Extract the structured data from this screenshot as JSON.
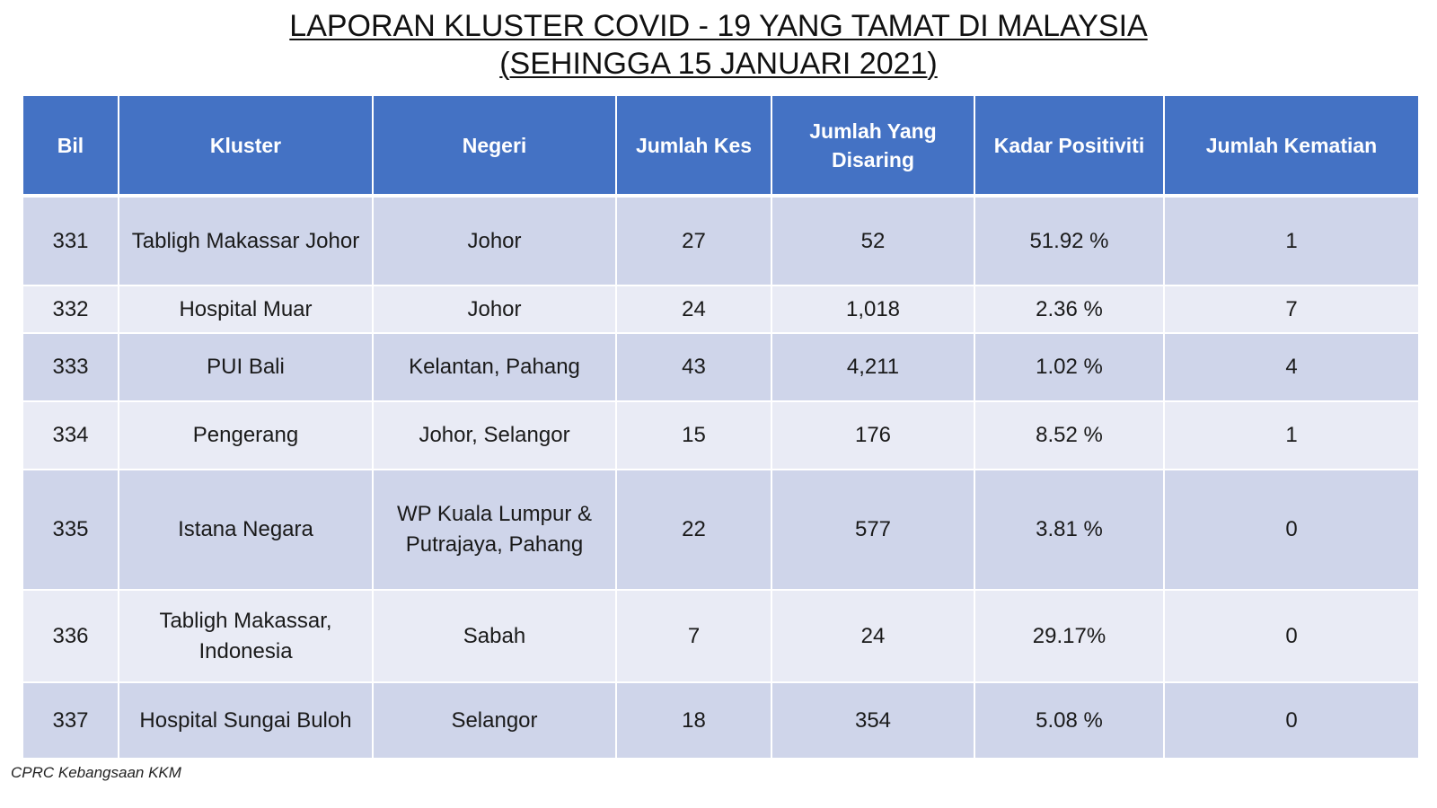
{
  "title": {
    "line1": "LAPORAN KLUSTER COVID - 19 YANG TAMAT DI MALAYSIA",
    "line2": "(SEHINGGA 15 JANUARI 2021)"
  },
  "table": {
    "headers": [
      "Bil",
      "Kluster",
      "Negeri",
      "Jumlah Kes",
      "Jumlah Yang Disaring",
      "Kadar Positiviti",
      "Jumlah Kematian"
    ],
    "rows": [
      {
        "bil": "331",
        "kluster": "Tabligh Makassar Johor",
        "negeri": "Johor",
        "kes": "27",
        "disaring": "52",
        "kadar": "51.92 %",
        "kematian": "1"
      },
      {
        "bil": "332",
        "kluster": "Hospital Muar",
        "negeri": "Johor",
        "kes": "24",
        "disaring": "1,018",
        "kadar": "2.36 %",
        "kematian": "7"
      },
      {
        "bil": "333",
        "kluster": "PUI Bali",
        "negeri": "Kelantan, Pahang",
        "kes": "43",
        "disaring": "4,211",
        "kadar": "1.02 %",
        "kematian": "4"
      },
      {
        "bil": "334",
        "kluster": "Pengerang",
        "negeri": "Johor, Selangor",
        "kes": "15",
        "disaring": "176",
        "kadar": "8.52 %",
        "kematian": "1"
      },
      {
        "bil": "335",
        "kluster": "Istana Negara",
        "negeri": "WP Kuala Lumpur & Putrajaya, Pahang",
        "kes": "22",
        "disaring": "577",
        "kadar": "3.81 %",
        "kematian": "0"
      },
      {
        "bil": "336",
        "kluster": "Tabligh Makassar, Indonesia",
        "negeri": "Sabah",
        "kes": "7",
        "disaring": "24",
        "kadar": "29.17%",
        "kematian": "0"
      },
      {
        "bil": "337",
        "kluster": "Hospital Sungai Buloh",
        "negeri": "Selangor",
        "kes": "18",
        "disaring": "354",
        "kadar": "5.08 %",
        "kematian": "0"
      }
    ]
  },
  "footer": "CPRC Kebangsaan KKM",
  "colors": {
    "header_bg": "#4472c4",
    "row_odd_bg": "#cfd5ea",
    "row_even_bg": "#e9ebf5"
  }
}
